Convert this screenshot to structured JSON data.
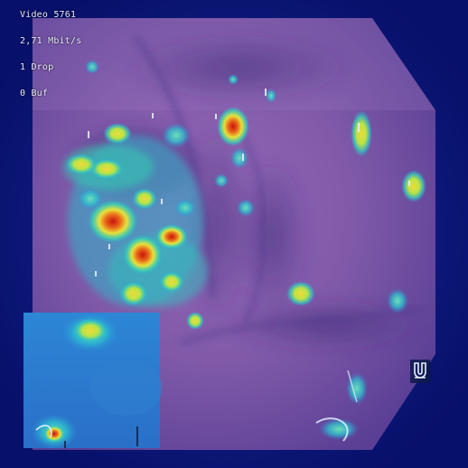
{
  "overlay": {
    "video": "Video 5761",
    "bitrate": "2,71 Mbit/s",
    "drop": "1 Drop",
    "buffer": "0 Buf"
  },
  "icons": {
    "corner_icon": "magnet-icon"
  },
  "colors": {
    "background": "#0a1470",
    "tissue": "#7f5aa6",
    "heat_low": "#22c3c8",
    "heat_mid": "#e6e63a",
    "heat_high": "#d51f12",
    "inset_base": "#2f8fd6"
  }
}
